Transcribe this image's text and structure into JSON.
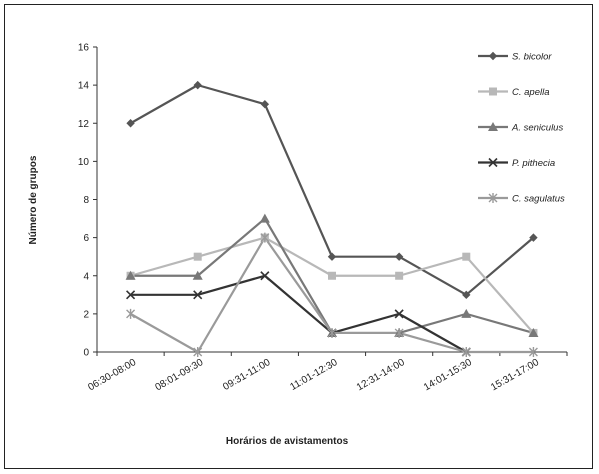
{
  "chart_data": {
    "type": "line",
    "title": "",
    "xlabel": "Horários de avistamentos",
    "ylabel": "Número de grupos",
    "categories": [
      "06:30-08:00",
      "08:01-09:30",
      "09:31-11:00",
      "11:01-12:30",
      "12:31-14:00",
      "14:01-15:30",
      "15:31-17:00"
    ],
    "ylim": [
      0,
      16
    ],
    "yticks": [
      0,
      2,
      4,
      6,
      8,
      10,
      12,
      14,
      16
    ],
    "grid": false,
    "legend_position": "right",
    "series": [
      {
        "name": "S. bicolor",
        "values": [
          12,
          14,
          13,
          5,
          5,
          3,
          6
        ],
        "color": "#555555",
        "marker": "diamond"
      },
      {
        "name": "C. apella",
        "values": [
          4,
          5,
          6,
          4,
          4,
          5,
          1
        ],
        "color": "#b8b8b8",
        "marker": "square"
      },
      {
        "name": "A. seniculus",
        "values": [
          4,
          4,
          7,
          1,
          1,
          2,
          1
        ],
        "color": "#787878",
        "marker": "triangle"
      },
      {
        "name": "P. pithecia",
        "values": [
          3,
          3,
          4,
          1,
          2,
          0,
          null
        ],
        "color": "#333333",
        "marker": "x"
      },
      {
        "name": "C. sagulatus",
        "values": [
          2,
          0,
          6,
          1,
          1,
          0,
          0
        ],
        "color": "#9a9a9a",
        "marker": "star"
      }
    ]
  }
}
